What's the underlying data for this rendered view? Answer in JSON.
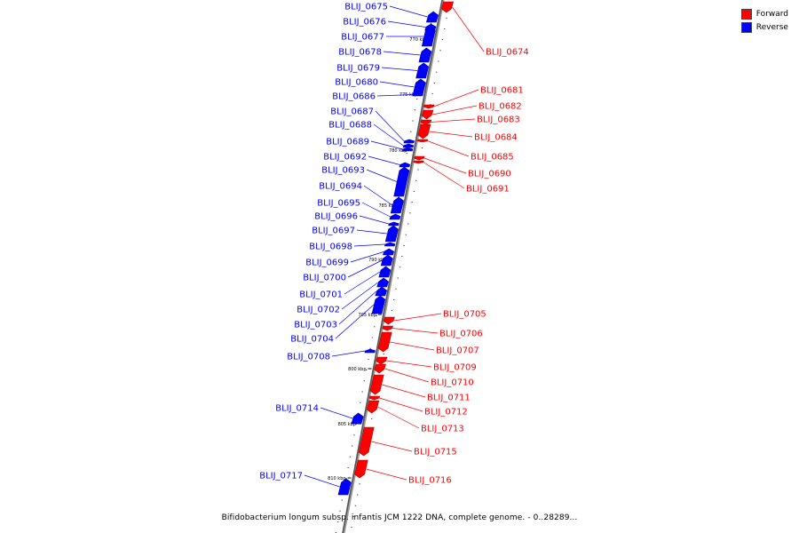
{
  "legend": {
    "forward": {
      "label": "Forward",
      "color": "#ff0000"
    },
    "reverse": {
      "label": "Reverse",
      "color": "#0000ff"
    }
  },
  "caption": "Bifidobacterium longum subsp. infantis JCM 1222 DNA, complete genome. - 0..28289...",
  "ticks": [
    {
      "label": "770 kbp",
      "kbp": 770
    },
    {
      "label": "775 kbp",
      "kbp": 775
    },
    {
      "label": "780 kbp",
      "kbp": 780
    },
    {
      "label": "785 kbp",
      "kbp": 785
    },
    {
      "label": "790 kbp",
      "kbp": 790
    },
    {
      "label": "795 kbp",
      "kbp": 795
    },
    {
      "label": "800 kbp",
      "kbp": 800
    },
    {
      "label": "805 kbp",
      "kbp": 805
    },
    {
      "label": "810 kbp",
      "kbp": 810
    }
  ],
  "genes": [
    {
      "name": "BLIJ_0674",
      "strand": "forward"
    },
    {
      "name": "BLIJ_0675",
      "strand": "reverse"
    },
    {
      "name": "BLIJ_0676",
      "strand": "reverse"
    },
    {
      "name": "BLIJ_0677",
      "strand": "reverse"
    },
    {
      "name": "BLIJ_0678",
      "strand": "reverse"
    },
    {
      "name": "BLIJ_0679",
      "strand": "reverse"
    },
    {
      "name": "BLIJ_0680",
      "strand": "reverse"
    },
    {
      "name": "BLIJ_0681",
      "strand": "forward"
    },
    {
      "name": "BLIJ_0682",
      "strand": "forward"
    },
    {
      "name": "BLIJ_0683",
      "strand": "forward"
    },
    {
      "name": "BLIJ_0684",
      "strand": "forward"
    },
    {
      "name": "BLIJ_0685",
      "strand": "forward"
    },
    {
      "name": "BLIJ_0686",
      "strand": "reverse"
    },
    {
      "name": "BLIJ_0687",
      "strand": "reverse"
    },
    {
      "name": "BLIJ_0688",
      "strand": "reverse"
    },
    {
      "name": "BLIJ_0689",
      "strand": "reverse"
    },
    {
      "name": "BLIJ_0690",
      "strand": "forward"
    },
    {
      "name": "BLIJ_0691",
      "strand": "forward"
    },
    {
      "name": "BLIJ_0692",
      "strand": "reverse"
    },
    {
      "name": "BLIJ_0693",
      "strand": "reverse"
    },
    {
      "name": "BLIJ_0694",
      "strand": "reverse"
    },
    {
      "name": "BLIJ_0695",
      "strand": "reverse"
    },
    {
      "name": "BLIJ_0696",
      "strand": "reverse"
    },
    {
      "name": "BLIJ_0697",
      "strand": "reverse"
    },
    {
      "name": "BLIJ_0698",
      "strand": "reverse"
    },
    {
      "name": "BLIJ_0699",
      "strand": "reverse"
    },
    {
      "name": "BLIJ_0700",
      "strand": "reverse"
    },
    {
      "name": "BLIJ_0701",
      "strand": "reverse"
    },
    {
      "name": "BLIJ_0702",
      "strand": "reverse"
    },
    {
      "name": "BLIJ_0703",
      "strand": "reverse"
    },
    {
      "name": "BLIJ_0704",
      "strand": "reverse"
    },
    {
      "name": "BLIJ_0705",
      "strand": "forward"
    },
    {
      "name": "BLIJ_0706",
      "strand": "forward"
    },
    {
      "name": "BLIJ_0707",
      "strand": "forward"
    },
    {
      "name": "BLIJ_0708",
      "strand": "reverse"
    },
    {
      "name": "BLIJ_0709",
      "strand": "forward"
    },
    {
      "name": "BLIJ_0710",
      "strand": "forward"
    },
    {
      "name": "BLIJ_0711",
      "strand": "forward"
    },
    {
      "name": "BLIJ_0712",
      "strand": "forward"
    },
    {
      "name": "BLIJ_0713",
      "strand": "forward"
    },
    {
      "name": "BLIJ_0714",
      "strand": "reverse"
    },
    {
      "name": "BLIJ_0715",
      "strand": "forward"
    },
    {
      "name": "BLIJ_0716",
      "strand": "forward"
    },
    {
      "name": "BLIJ_0717",
      "strand": "reverse"
    }
  ]
}
